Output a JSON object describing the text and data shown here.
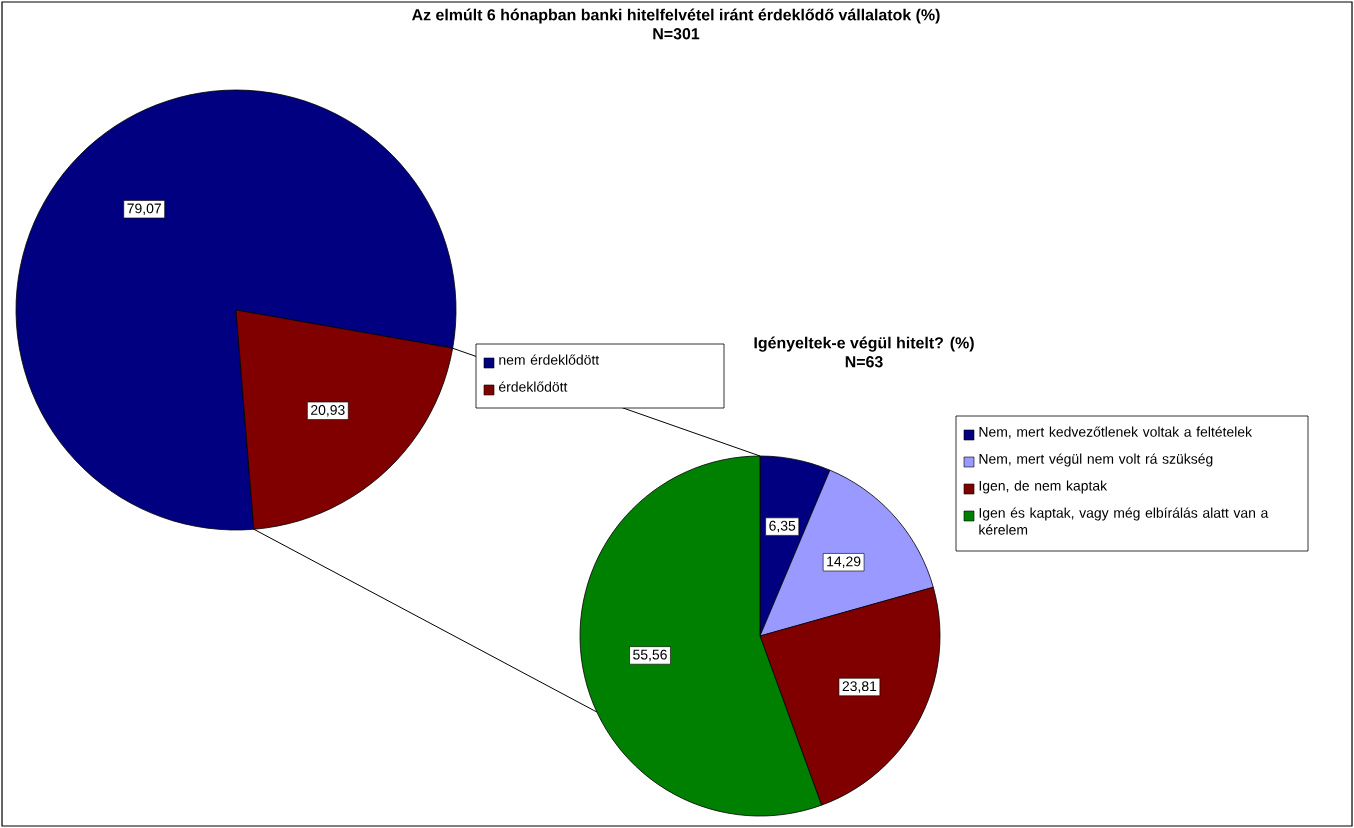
{
  "chart_data": [
    {
      "type": "pie",
      "title": "Az elmúlt 6 hónapban banki hitelfelvétel iránt érdeklődő vállalatok (%)",
      "subtitle": "N=301",
      "categories": [
        "nem érdeklődött",
        "érdeklődött"
      ],
      "values": [
        79.07,
        20.93
      ],
      "colors": [
        "#000080",
        "#800000"
      ],
      "value_labels": [
        "79,07",
        "20,93"
      ],
      "legend": "right"
    },
    {
      "type": "pie",
      "title": "Igényeltek-e végül hitelt? (%)",
      "subtitle": "N=63",
      "categories": [
        "Nem, mert kedvezőtlenek voltak a feltételek",
        "Nem, mert végül nem volt rá szükség",
        "Igen, de nem kaptak",
        "Igen és kaptak, vagy még elbírálás alatt van a kérelem"
      ],
      "values": [
        6.35,
        14.29,
        23.81,
        55.56
      ],
      "colors": [
        "#000080",
        "#9999ff",
        "#800000",
        "#008000"
      ],
      "value_labels": [
        "6,35",
        "14,29",
        "23,81",
        "55,56"
      ],
      "legend": "right"
    }
  ]
}
